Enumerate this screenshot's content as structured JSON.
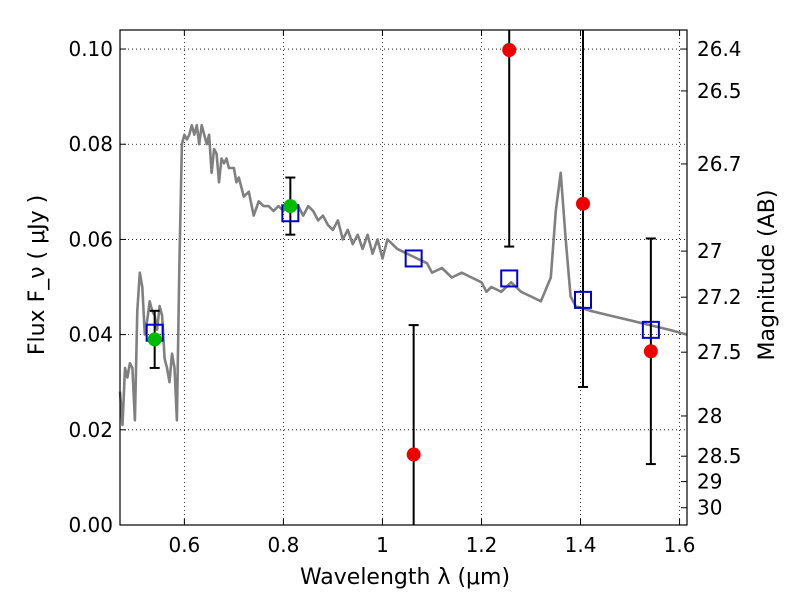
{
  "chart_data": {
    "type": "scatter",
    "xlabel": "Wavelength  λ (μm)",
    "ylabel": "Flux  F_ν  ( μJy )",
    "y2label": "Magnitude (AB)",
    "xlim": [
      0.47,
      1.615
    ],
    "ylim": [
      0.0,
      0.104
    ],
    "xticks": [
      0.6,
      0.8,
      1.0,
      1.2,
      1.4,
      1.6
    ],
    "xtick_labels": [
      "0.6",
      "0.8",
      "1",
      "1.2",
      "1.4",
      "1.6"
    ],
    "yticks": [
      0.0,
      0.02,
      0.04,
      0.06,
      0.08,
      0.1
    ],
    "ytick_labels": [
      "0.00",
      "0.02",
      "0.04",
      "0.06",
      "0.08",
      "0.10"
    ],
    "y2ticks": [
      26.4,
      26.5,
      26.7,
      27.0,
      27.2,
      27.5,
      28.0,
      28.5,
      29.0,
      30.0
    ],
    "y2tick_labels": [
      "26.4",
      "26.5",
      "26.7",
      "27",
      "27.2",
      "27.5",
      "28",
      "28.5",
      "29",
      "30"
    ],
    "grid": true,
    "model_sed": {
      "color": "#808080",
      "x": [
        0.47,
        0.475,
        0.48,
        0.485,
        0.49,
        0.495,
        0.5,
        0.505,
        0.51,
        0.515,
        0.52,
        0.525,
        0.53,
        0.535,
        0.54,
        0.545,
        0.55,
        0.555,
        0.56,
        0.565,
        0.57,
        0.575,
        0.58,
        0.585,
        0.59,
        0.595,
        0.6,
        0.605,
        0.61,
        0.615,
        0.62,
        0.625,
        0.63,
        0.635,
        0.64,
        0.645,
        0.65,
        0.655,
        0.66,
        0.665,
        0.67,
        0.675,
        0.68,
        0.685,
        0.69,
        0.7,
        0.705,
        0.71,
        0.72,
        0.73,
        0.74,
        0.75,
        0.76,
        0.77,
        0.78,
        0.79,
        0.8,
        0.81,
        0.82,
        0.83,
        0.84,
        0.85,
        0.86,
        0.87,
        0.88,
        0.89,
        0.9,
        0.91,
        0.92,
        0.93,
        0.94,
        0.95,
        0.96,
        0.97,
        0.98,
        0.99,
        1.0,
        1.01,
        1.02,
        1.03,
        1.05,
        1.07,
        1.09,
        1.1,
        1.12,
        1.14,
        1.16,
        1.18,
        1.2,
        1.21,
        1.22,
        1.24,
        1.26,
        1.28,
        1.3,
        1.32,
        1.34,
        1.35,
        1.36,
        1.37,
        1.38,
        1.39,
        1.42,
        1.46,
        1.5,
        1.54,
        1.58,
        1.615
      ],
      "y": [
        0.028,
        0.021,
        0.033,
        0.031,
        0.034,
        0.033,
        0.022,
        0.045,
        0.053,
        0.05,
        0.04,
        0.043,
        0.047,
        0.045,
        0.044,
        0.041,
        0.046,
        0.044,
        0.035,
        0.033,
        0.03,
        0.036,
        0.033,
        0.022,
        0.055,
        0.08,
        0.082,
        0.081,
        0.082,
        0.084,
        0.082,
        0.084,
        0.08,
        0.084,
        0.082,
        0.08,
        0.082,
        0.074,
        0.079,
        0.078,
        0.072,
        0.077,
        0.076,
        0.077,
        0.075,
        0.075,
        0.072,
        0.073,
        0.069,
        0.07,
        0.065,
        0.068,
        0.067,
        0.067,
        0.066,
        0.067,
        0.066,
        0.068,
        0.066,
        0.067,
        0.065,
        0.067,
        0.066,
        0.064,
        0.065,
        0.063,
        0.062,
        0.064,
        0.06,
        0.062,
        0.059,
        0.061,
        0.058,
        0.061,
        0.057,
        0.06,
        0.056,
        0.06,
        0.059,
        0.058,
        0.057,
        0.056,
        0.055,
        0.053,
        0.054,
        0.052,
        0.053,
        0.052,
        0.051,
        0.049,
        0.05,
        0.049,
        0.051,
        0.049,
        0.048,
        0.047,
        0.052,
        0.066,
        0.074,
        0.06,
        0.048,
        0.046,
        0.045,
        0.044,
        0.043,
        0.042,
        0.041,
        0.04
      ]
    },
    "model_photometry": {
      "marker": "open-square",
      "color": "#0000cc",
      "x": [
        0.54,
        0.814,
        1.063,
        1.256,
        1.405,
        1.542
      ],
      "y": [
        0.0404,
        0.0655,
        0.056,
        0.0518,
        0.0473,
        0.041
      ]
    },
    "detections": {
      "marker": "filled-circle",
      "color": "#00bb00",
      "x": [
        0.54,
        0.814
      ],
      "y": [
        0.039,
        0.067
      ],
      "yerr_low": [
        0.033,
        0.061
      ],
      "yerr_high": [
        0.045,
        0.073
      ]
    },
    "nondetections": {
      "marker": "filled-circle",
      "color": "#ee0000",
      "x": [
        1.063,
        1.256,
        1.405,
        1.542
      ],
      "y": [
        0.0148,
        0.0998,
        0.0675,
        0.0365
      ],
      "yerr_low": [
        0.0,
        0.0585,
        0.029,
        0.0128
      ],
      "yerr_high": [
        0.042,
        0.104,
        0.104,
        0.0602
      ]
    }
  }
}
